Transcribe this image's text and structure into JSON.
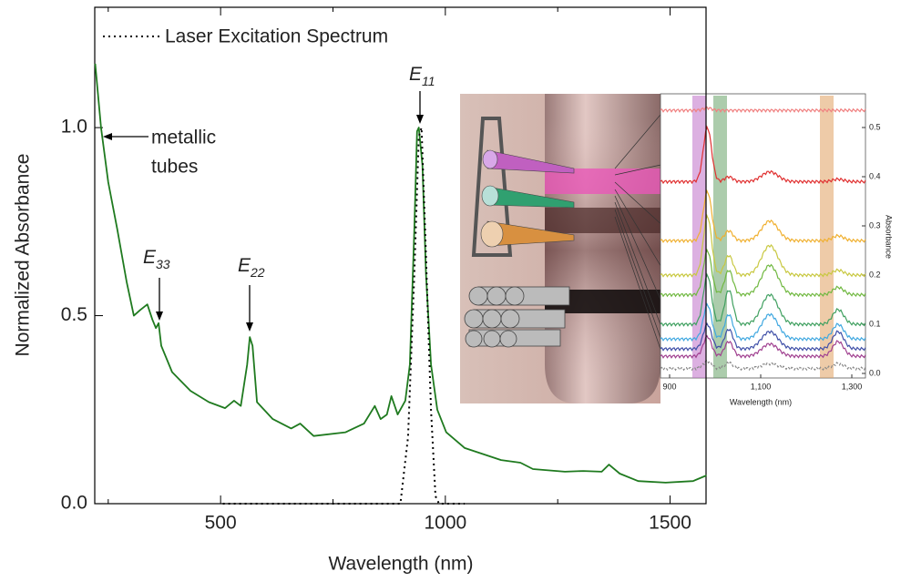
{
  "chart_data": {
    "type": "line",
    "xlabel": "Wavelength (nm)",
    "ylabel": "Normalized Absorbance",
    "xlim": [
      220,
      1580
    ],
    "ylim": [
      0,
      1.32
    ],
    "xticks": [
      500,
      1000,
      1500
    ],
    "xminorticks": [
      250,
      750,
      1250
    ],
    "yticks": [
      {
        "value": 0,
        "label": "0.0"
      },
      0.5,
      {
        "value": 1,
        "label": "1.0"
      }
    ],
    "series": [
      {
        "name": "Absorbance",
        "color": "#1f7a1f",
        "style": "solid",
        "x": [
          221,
          234,
          250,
          270,
          291,
          307,
          321,
          337,
          348,
          356,
          362,
          368,
          392,
          433,
          474,
          510,
          530,
          545,
          559,
          565,
          571,
          581,
          616,
          657,
          677,
          707,
          778,
          819,
          843,
          856,
          870,
          880,
          894,
          911,
          921,
          931,
          937,
          941,
          949,
          957,
          968,
          982,
          1002,
          1043,
          1124,
          1167,
          1195,
          1266,
          1307,
          1348,
          1364,
          1388,
          1429,
          1490,
          1551,
          1581
        ],
        "values": [
          1.17,
          1.0,
          0.855,
          0.73,
          0.59,
          0.5,
          0.515,
          0.53,
          0.49,
          0.467,
          0.48,
          0.42,
          0.35,
          0.3,
          0.27,
          0.254,
          0.274,
          0.26,
          0.37,
          0.443,
          0.42,
          0.27,
          0.225,
          0.2,
          0.213,
          0.18,
          0.19,
          0.213,
          0.26,
          0.225,
          0.237,
          0.286,
          0.237,
          0.274,
          0.37,
          0.73,
          0.99,
          1.0,
          0.9,
          0.61,
          0.37,
          0.25,
          0.19,
          0.148,
          0.116,
          0.109,
          0.092,
          0.085,
          0.087,
          0.085,
          0.104,
          0.08,
          0.06,
          0.056,
          0.06,
          0.075
        ]
      },
      {
        "name": "Laser Excitation Spectrum",
        "color": "#000000",
        "style": "dotted",
        "x": [
          505,
          900,
          917,
          931,
          941,
          947,
          955,
          968,
          978,
          986,
          1043
        ],
        "values": [
          0,
          0,
          0.177,
          0.61,
          0.976,
          1.0,
          0.73,
          0.25,
          0.02,
          0,
          0
        ]
      }
    ],
    "annotations": [
      {
        "text": "E",
        "sub": "11"
      },
      {
        "text": "E",
        "sub": "33"
      },
      {
        "text": "E",
        "sub": "22"
      },
      {
        "text": "metallic",
        "text2": "tubes"
      }
    ],
    "inset": {
      "xlabel": "Wavelength (nm)",
      "ylabel": "Absorbance",
      "xticks": [
        900,
        {
          "value": 1100,
          "label": "1,100"
        },
        {
          "value": 1300,
          "label": "1,300"
        }
      ],
      "yticks": [
        {
          "value": 0,
          "label": "0.0"
        },
        0.1,
        0.2,
        0.3,
        0.4,
        0.5
      ]
    }
  }
}
